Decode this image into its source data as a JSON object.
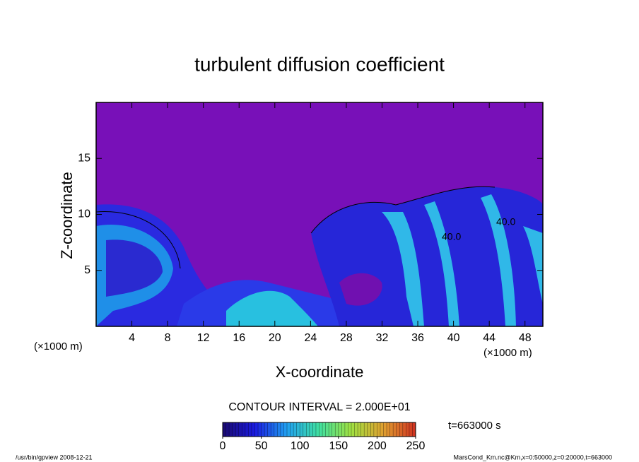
{
  "chart_data": {
    "type": "contour",
    "title": "turbulent diffusion coefficient",
    "x_label": "X-coordinate",
    "y_label": "Z-coordinate",
    "x_unit": "(×1000 m)",
    "xlim": [
      0,
      50
    ],
    "xticks": [
      4,
      8,
      12,
      16,
      20,
      24,
      28,
      32,
      36,
      40,
      44,
      48
    ],
    "ylim": [
      0,
      20
    ],
    "yticks": [
      5,
      10,
      15
    ],
    "contour_interval": "CONTOUR INTERVAL = 2.000E+01",
    "contour_labels": [
      "40.0",
      "40.0"
    ],
    "time_label": "t=663000 s",
    "colorbar": {
      "lim": [
        0,
        250
      ],
      "ticks": [
        0,
        50,
        100,
        150,
        200,
        250
      ],
      "colormap": [
        "#1a0a6e",
        "#1a1ae0",
        "#20a0f0",
        "#40e0a0",
        "#a0e040",
        "#e0a030",
        "#d03020"
      ]
    },
    "footer_left": "/usr/bin/gpview   2008-12-21",
    "footer_right": "MarsCond_Km.nc@Km,x=0:50000,z=0:20000,t=663000"
  }
}
